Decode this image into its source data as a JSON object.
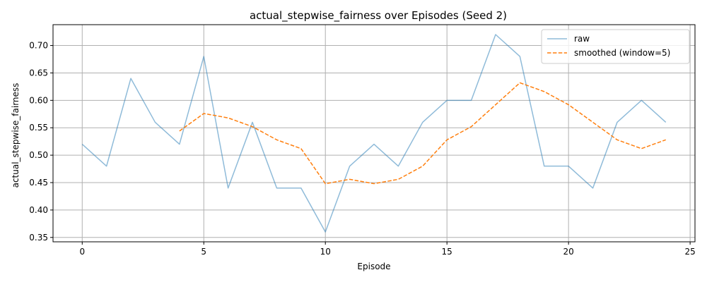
{
  "chart_data": {
    "type": "line",
    "title": "actual_stepwise_fairness over Episodes (Seed 2)",
    "xlabel": "Episode",
    "ylabel": "actual_stepwise_fairness",
    "xlim": [
      -1.2,
      25.2
    ],
    "ylim": [
      0.342,
      0.738
    ],
    "xticks": [
      0,
      5,
      10,
      15,
      20,
      25
    ],
    "yticks": [
      0.35,
      0.4,
      0.45,
      0.5,
      0.55,
      0.6,
      0.65,
      0.7
    ],
    "xtick_labels": [
      "0",
      "5",
      "10",
      "15",
      "20",
      "25"
    ],
    "ytick_labels": [
      "0.35",
      "0.40",
      "0.45",
      "0.50",
      "0.55",
      "0.60",
      "0.65",
      "0.70"
    ],
    "grid": true,
    "legend_position": "top-right",
    "series": [
      {
        "name": "raw",
        "color": "#1f77b4",
        "style": "solid",
        "opacity": 0.5,
        "x": [
          0,
          1,
          2,
          3,
          4,
          5,
          6,
          7,
          8,
          9,
          10,
          11,
          12,
          13,
          14,
          15,
          16,
          17,
          18,
          19,
          20,
          21,
          22,
          23,
          24
        ],
        "y": [
          0.52,
          0.48,
          0.64,
          0.56,
          0.52,
          0.68,
          0.44,
          0.56,
          0.44,
          0.44,
          0.36,
          0.48,
          0.52,
          0.48,
          0.56,
          0.6,
          0.6,
          0.72,
          0.68,
          0.48,
          0.48,
          0.44,
          0.56,
          0.6,
          0.56
        ]
      },
      {
        "name": "smoothed (window=5)",
        "color": "#ff7f0e",
        "style": "dashed",
        "opacity": 1,
        "x": [
          4,
          5,
          6,
          7,
          8,
          9,
          10,
          11,
          12,
          13,
          14,
          15,
          16,
          17,
          18,
          19,
          20,
          21,
          22,
          23,
          24
        ],
        "y": [
          0.544,
          0.576,
          0.568,
          0.552,
          0.528,
          0.512,
          0.448,
          0.456,
          0.448,
          0.456,
          0.48,
          0.528,
          0.552,
          0.592,
          0.632,
          0.616,
          0.592,
          0.56,
          0.528,
          0.512,
          0.528
        ]
      }
    ]
  }
}
